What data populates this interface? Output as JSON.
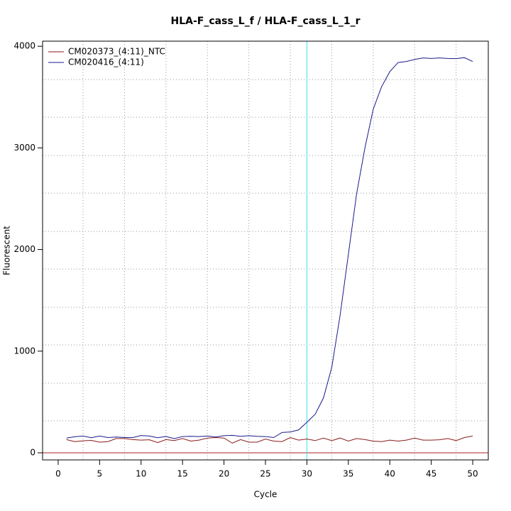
{
  "chart_data": {
    "type": "line",
    "title": "HLA-F_cass_L_f / HLA-F_cass_L_1_r",
    "x_label": "Cycle",
    "y_label": "Fluorescent",
    "x": [
      1,
      2,
      3,
      4,
      5,
      6,
      7,
      8,
      9,
      10,
      11,
      12,
      13,
      14,
      15,
      16,
      17,
      18,
      19,
      20,
      21,
      22,
      23,
      24,
      25,
      26,
      27,
      28,
      29,
      30,
      31,
      32,
      33,
      34,
      35,
      36,
      37,
      38,
      39,
      40,
      41,
      42,
      43,
      44,
      45,
      46,
      47,
      48,
      49,
      50
    ],
    "series": [
      {
        "name": "CM020373_(4:11)_NTC",
        "color": "#8b1a1a",
        "values": [
          130,
          110,
          118,
          122,
          105,
          110,
          140,
          140,
          130,
          125,
          128,
          100,
          130,
          120,
          140,
          115,
          125,
          145,
          150,
          145,
          95,
          130,
          105,
          105,
          135,
          115,
          110,
          150,
          125,
          135,
          120,
          145,
          120,
          145,
          115,
          140,
          130,
          115,
          110,
          125,
          115,
          125,
          145,
          125,
          125,
          128,
          140,
          120,
          150,
          165
        ]
      },
      {
        "name": "CM020416_(4:11)",
        "color": "#1a1a8b",
        "values": [
          145,
          158,
          165,
          148,
          165,
          150,
          155,
          150,
          150,
          170,
          165,
          148,
          160,
          140,
          160,
          162,
          160,
          165,
          155,
          168,
          172,
          162,
          168,
          162,
          160,
          150,
          200,
          205,
          225,
          300,
          380,
          540,
          840,
          1350,
          1950,
          2550,
          3000,
          3380,
          3600,
          3750,
          3840,
          3850,
          3870,
          3885,
          3880,
          3885,
          3880,
          3878,
          3888,
          3850
        ]
      }
    ],
    "xlim": [
      -1.88,
      51.88
    ],
    "ylim": [
      -70,
      4050
    ],
    "xticks": [
      0,
      5,
      10,
      15,
      20,
      25,
      30,
      35,
      40,
      45,
      50
    ],
    "yticks": [
      0,
      1000,
      2000,
      3000,
      4000
    ],
    "x_grid": [
      3,
      8,
      13,
      18,
      23,
      28,
      33,
      38,
      43,
      48
    ],
    "y_grid": [
      314,
      684,
      1061,
      1431,
      1808,
      2178,
      2555,
      2925,
      3302,
      3672
    ],
    "threshold_cycle": 30,
    "threshold_color": "#40e0f0",
    "baseline": 0,
    "baseline_color": "#b22222",
    "legend": "top-left"
  }
}
